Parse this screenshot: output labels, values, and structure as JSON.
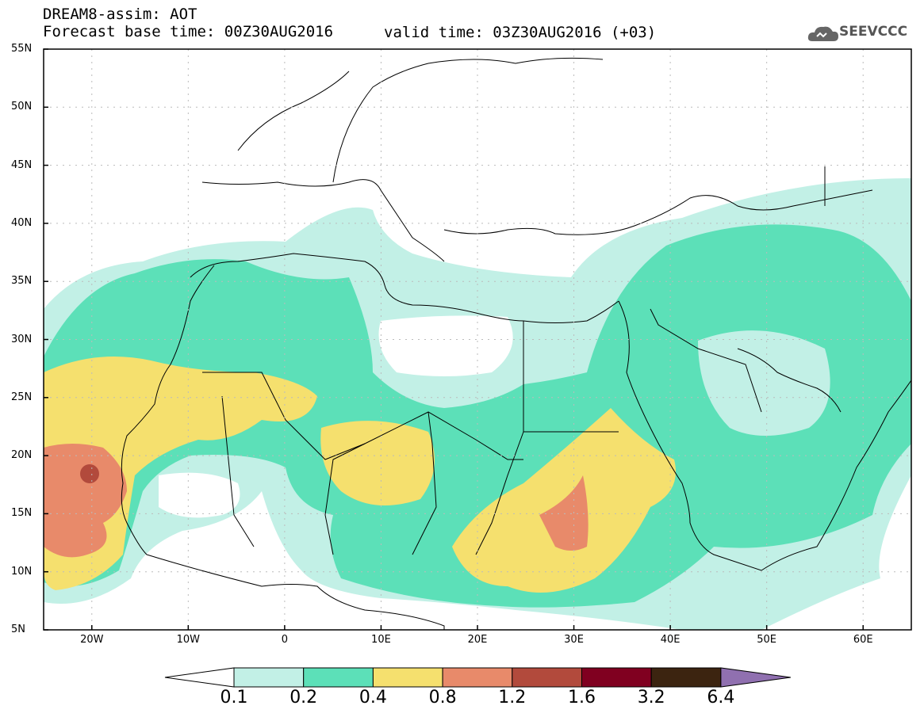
{
  "header": {
    "line1": "DREAM8-assim: AOT",
    "line2": "Forecast base time: 00Z30AUG2016",
    "valid": "valid time: 03Z30AUG2016 (+03)"
  },
  "logo": {
    "text": "SEEVCCC",
    "icon": "cloud-icon"
  },
  "map": {
    "lat_labels": [
      "55N",
      "50N",
      "45N",
      "40N",
      "35N",
      "30N",
      "25N",
      "20N",
      "15N",
      "10N",
      "5N"
    ],
    "lon_labels": [
      "20W",
      "10W",
      "0",
      "10E",
      "20E",
      "30E",
      "40E",
      "50E",
      "60E"
    ],
    "lon_range": [
      -25,
      65
    ],
    "lat_range": [
      5,
      55
    ],
    "grid": "dotted"
  },
  "legend": {
    "levels": [
      "0.1",
      "0.2",
      "0.4",
      "0.8",
      "1.2",
      "1.6",
      "3.2",
      "6.4"
    ],
    "colors": [
      "#c2f0e6",
      "#5ce0b8",
      "#f5e06e",
      "#e88a6a",
      "#b24a3c",
      "#800020",
      "#3c2410",
      "#9070b0"
    ]
  }
}
